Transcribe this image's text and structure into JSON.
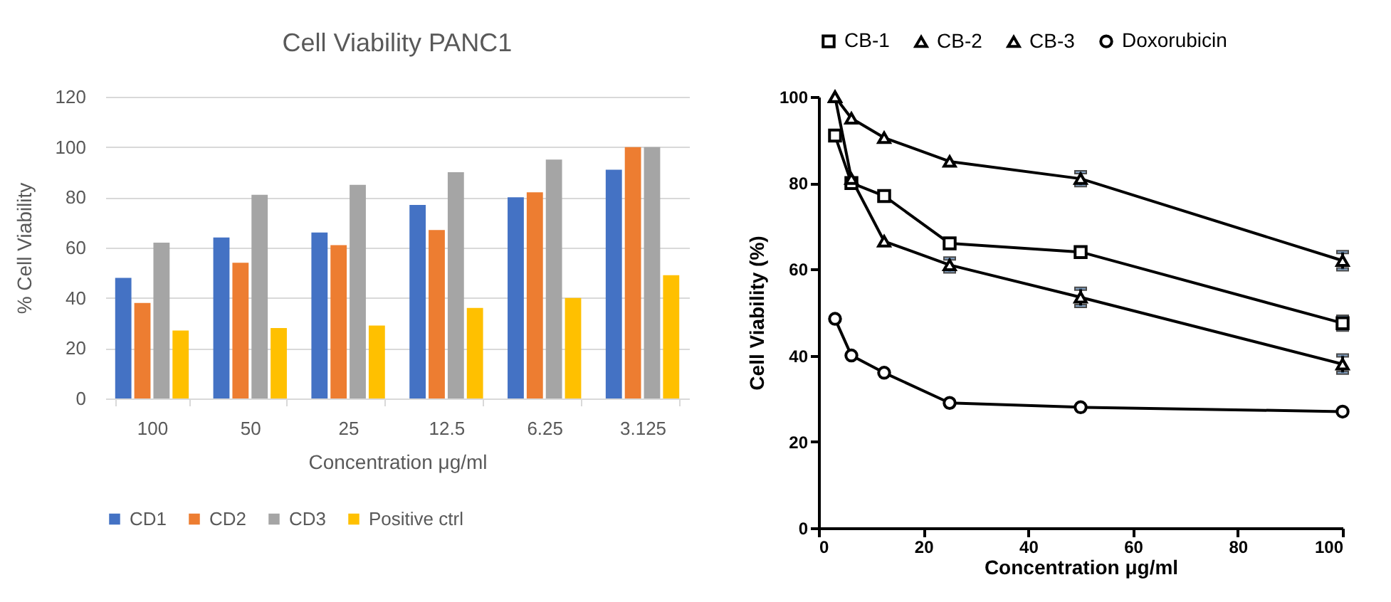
{
  "chart_data": [
    {
      "type": "bar",
      "title": "Cell Viability PANC1",
      "xlabel": "Concentration μg/ml",
      "ylabel": "% Cell Viability",
      "categories": [
        "100",
        "50",
        "25",
        "12.5",
        "6.25",
        "3.125"
      ],
      "series": [
        {
          "name": "CD1",
          "color": "#4472c4",
          "values": [
            48,
            64,
            66,
            77,
            80,
            91
          ]
        },
        {
          "name": "CD2",
          "color": "#ed7d31",
          "values": [
            38,
            54,
            61,
            67,
            82,
            100
          ]
        },
        {
          "name": "CD3",
          "color": "#a5a5a5",
          "values": [
            62,
            81,
            85,
            90,
            95,
            100
          ]
        },
        {
          "name": "Positive ctrl",
          "color": "#ffc000",
          "values": [
            27,
            28,
            29,
            36,
            40,
            49
          ]
        }
      ],
      "ylim": [
        0,
        120
      ],
      "yticks": [
        0,
        20,
        40,
        60,
        80,
        100,
        120
      ],
      "grid": "y",
      "legend": "bottom"
    },
    {
      "type": "line",
      "xlabel": "Concentration μg/ml",
      "ylabel": "Cell  Viability (%)",
      "x": [
        3.125,
        6.25,
        12.5,
        25,
        50,
        100
      ],
      "series": [
        {
          "name": "CB-1",
          "color": "#000000",
          "marker": "square",
          "values": [
            91,
            80,
            77,
            66,
            64,
            47.5
          ],
          "errors": [
            null,
            null,
            null,
            null,
            1,
            1.5
          ]
        },
        {
          "name": "CB-2",
          "color": "#000000",
          "marker": "triangle",
          "values": [
            100,
            81,
            66.5,
            61,
            53.5,
            38
          ],
          "errors": [
            null,
            null,
            null,
            1.5,
            2,
            2
          ]
        },
        {
          "name": "CB-3",
          "color": "#000000",
          "marker": "triangle",
          "values": [
            100,
            95,
            90.5,
            85,
            81,
            62
          ],
          "errors": [
            null,
            null,
            null,
            null,
            1.5,
            2
          ]
        },
        {
          "name": "Doxorubicin",
          "color": "#000000",
          "marker": "circle",
          "values": [
            48.5,
            40,
            36,
            29,
            28,
            27
          ]
        }
      ],
      "xlim": [
        0,
        100
      ],
      "xticks": [
        0,
        20,
        40,
        60,
        80,
        100
      ],
      "ylim": [
        0,
        100
      ],
      "yticks": [
        0,
        20,
        40,
        60,
        80,
        100
      ],
      "legend": "top"
    }
  ]
}
